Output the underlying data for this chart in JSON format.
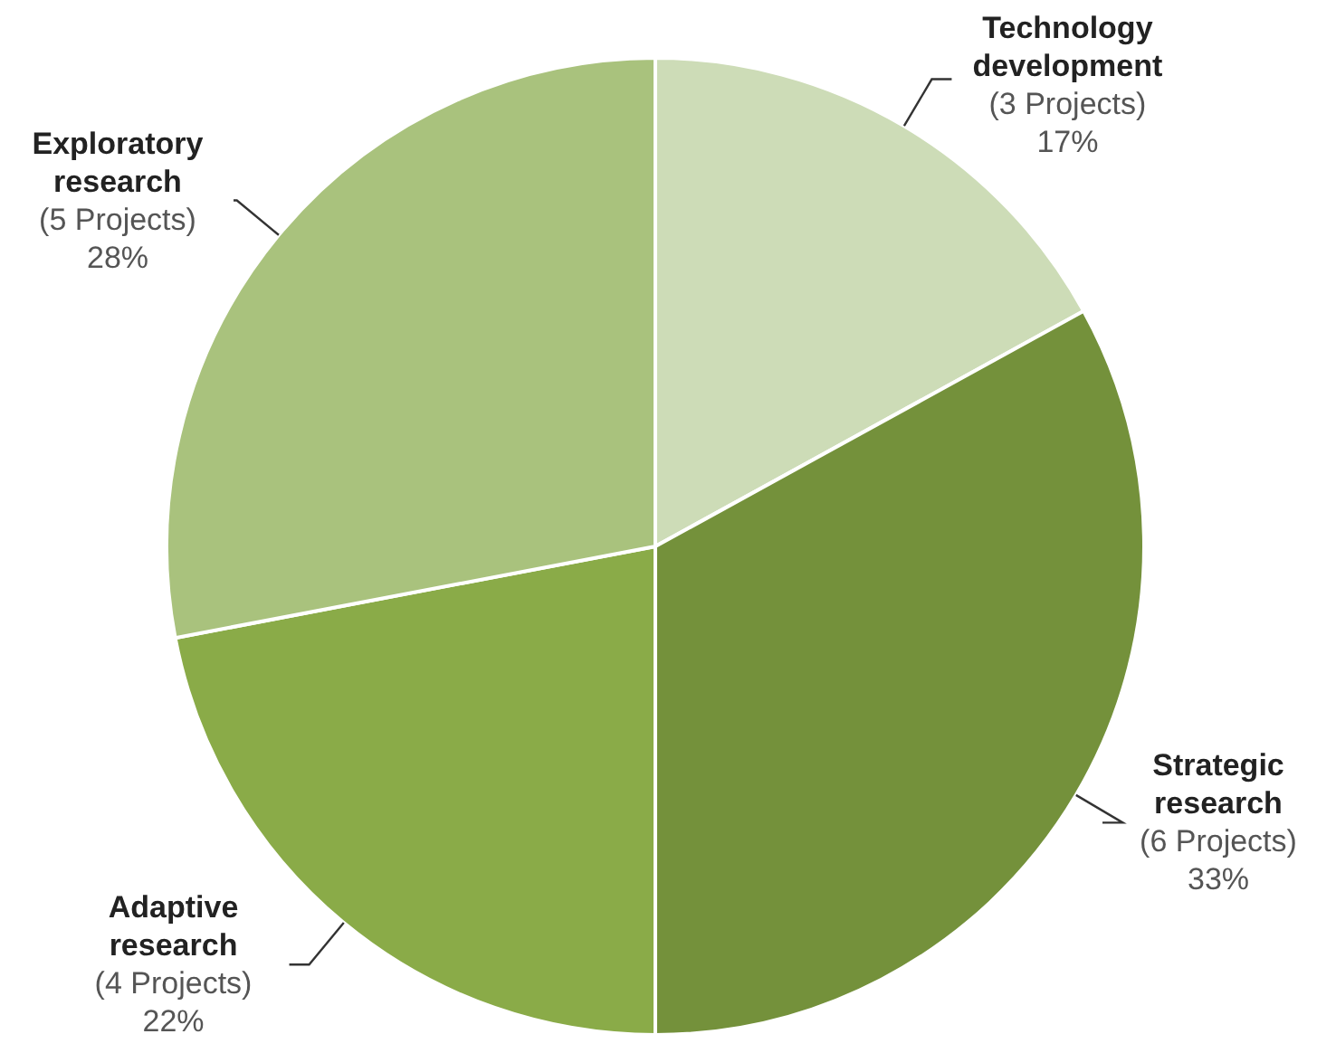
{
  "chart_data": {
    "type": "pie",
    "categories": [
      "Technology development",
      "Strategic research",
      "Adaptive research",
      "Exploratory research"
    ],
    "values": [
      17,
      33,
      22,
      28
    ],
    "colors": [
      "#cddcb7",
      "#74913b",
      "#8aab48",
      "#a9c27d"
    ],
    "value_labels": [
      "(3 Projects)\n17%",
      "(6 Projects)\n33%",
      "(4 Projects)\n22%",
      "(5 Projects)\n28%"
    ]
  }
}
